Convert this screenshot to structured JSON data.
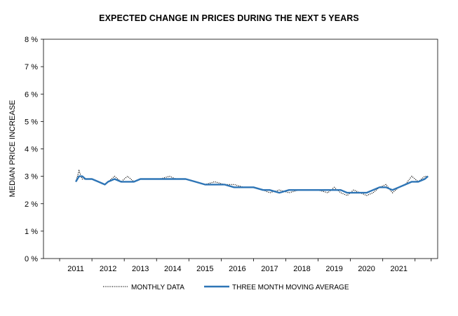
{
  "chart_data": {
    "type": "line",
    "title": "EXPECTED CHANGE IN PRICES DURING THE NEXT 5 YEARS",
    "ylabel": "MEDIAN PRICE INCREASE",
    "xlabel": "",
    "ylim": [
      0,
      8
    ],
    "xlim": [
      2010,
      2022.2
    ],
    "grid": false,
    "legend_position": "bottom",
    "y_ticks": [
      "0 %",
      "1 %",
      "2 %",
      "3 %",
      "4 %",
      "5 %",
      "6 %",
      "7 %",
      "8 %"
    ],
    "x_ticks": [
      "2011",
      "2012",
      "2013",
      "2014",
      "2015",
      "2016",
      "2017",
      "2018",
      "2019",
      "2020",
      "2021"
    ],
    "series": [
      {
        "name": "MONTHLY DATA",
        "style": "dotted",
        "color": "#000000",
        "x": [
          2011.0,
          2011.1,
          2011.2,
          2011.3,
          2011.5,
          2011.7,
          2011.9,
          2012.0,
          2012.2,
          2012.4,
          2012.6,
          2012.8,
          2013.0,
          2013.3,
          2013.6,
          2013.9,
          2014.1,
          2014.4,
          2014.7,
          2015.0,
          2015.3,
          2015.6,
          2015.9,
          2016.2,
          2016.5,
          2016.8,
          2017.0,
          2017.3,
          2017.6,
          2017.9,
          2018.2,
          2018.5,
          2018.8,
          2019.0,
          2019.2,
          2019.4,
          2019.6,
          2019.8,
          2020.0,
          2020.2,
          2020.4,
          2020.6,
          2020.8,
          2021.0,
          2021.2,
          2021.4,
          2021.6,
          2021.8,
          2021.9
        ],
        "values": [
          2.8,
          3.2,
          2.9,
          2.9,
          2.9,
          2.8,
          2.7,
          2.8,
          3.0,
          2.8,
          3.0,
          2.8,
          2.9,
          2.9,
          2.9,
          3.0,
          2.9,
          2.9,
          2.8,
          2.7,
          2.8,
          2.7,
          2.7,
          2.6,
          2.6,
          2.5,
          2.4,
          2.5,
          2.4,
          2.5,
          2.5,
          2.5,
          2.4,
          2.6,
          2.4,
          2.3,
          2.5,
          2.4,
          2.3,
          2.4,
          2.6,
          2.7,
          2.4,
          2.6,
          2.7,
          3.0,
          2.8,
          3.0,
          3.0
        ]
      },
      {
        "name": "THREE MONTH MOVING AVERAGE",
        "style": "solid",
        "color": "#2E75B6",
        "x": [
          2011.0,
          2011.1,
          2011.2,
          2011.3,
          2011.5,
          2011.7,
          2011.9,
          2012.0,
          2012.2,
          2012.4,
          2012.6,
          2012.8,
          2013.0,
          2013.3,
          2013.6,
          2013.9,
          2014.1,
          2014.4,
          2014.7,
          2015.0,
          2015.3,
          2015.6,
          2015.9,
          2016.2,
          2016.5,
          2016.8,
          2017.0,
          2017.3,
          2017.6,
          2017.9,
          2018.2,
          2018.5,
          2018.8,
          2019.0,
          2019.2,
          2019.4,
          2019.6,
          2019.8,
          2020.0,
          2020.2,
          2020.4,
          2020.6,
          2020.8,
          2021.0,
          2021.2,
          2021.4,
          2021.6,
          2021.8,
          2021.9
        ],
        "values": [
          2.8,
          3.0,
          3.0,
          2.9,
          2.9,
          2.8,
          2.7,
          2.8,
          2.9,
          2.8,
          2.8,
          2.8,
          2.9,
          2.9,
          2.9,
          2.9,
          2.9,
          2.9,
          2.8,
          2.7,
          2.7,
          2.7,
          2.6,
          2.6,
          2.6,
          2.5,
          2.5,
          2.4,
          2.5,
          2.5,
          2.5,
          2.5,
          2.5,
          2.5,
          2.5,
          2.4,
          2.4,
          2.4,
          2.4,
          2.5,
          2.6,
          2.6,
          2.5,
          2.6,
          2.7,
          2.8,
          2.8,
          2.9,
          3.0
        ]
      }
    ]
  }
}
